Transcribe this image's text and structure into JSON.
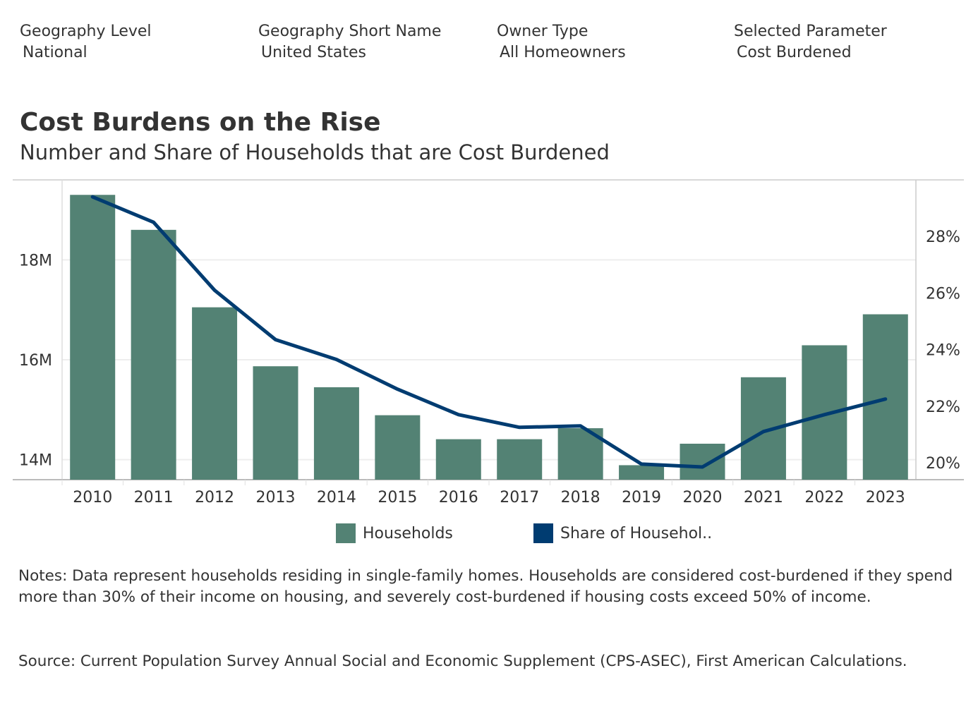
{
  "filters": [
    {
      "label": "Geography Level",
      "value": "National"
    },
    {
      "label": "Geography Short Name",
      "value": "United States"
    },
    {
      "label": "Owner Type",
      "value": "All Homeowners"
    },
    {
      "label": "Selected Parameter",
      "value": "Cost Burdened"
    }
  ],
  "title": "Cost Burdens on the Rise",
  "subtitle": "Number and Share of Households that are Cost Burdened",
  "legend": {
    "households": "Households",
    "share": "Share of Househol.."
  },
  "colors": {
    "bars": "#538274",
    "line": "#003c71",
    "grid": "#eeeeee",
    "axis": "#bbbbbb",
    "text": "#333333"
  },
  "notes": "Notes: Data represent households residing in single-family homes. Households are considered cost-burdened if they spend more than 30% of their income on housing, and severely cost-burdened if housing costs exceed 50% of income.",
  "source": "Source: Current Population Survey Annual Social and Economic Supplement (CPS-ASEC), First American Calculations.",
  "chart_data": {
    "type": "bar",
    "title": "Cost Burdens on the Rise",
    "subtitle": "Number and Share of Households that are Cost Burdened",
    "categories": [
      "2010",
      "2011",
      "2012",
      "2013",
      "2014",
      "2015",
      "2016",
      "2017",
      "2018",
      "2019",
      "2020",
      "2021",
      "2022",
      "2023"
    ],
    "series": [
      {
        "name": "Households",
        "type": "bar",
        "axis": "left",
        "values": [
          19.3,
          18.6,
          17.05,
          15.87,
          15.45,
          14.89,
          14.41,
          14.41,
          14.63,
          13.89,
          14.32,
          15.65,
          16.29,
          16.91
        ]
      },
      {
        "name": "Share of Househol..",
        "type": "line",
        "axis": "right",
        "values": [
          29.4,
          28.5,
          26.1,
          24.35,
          23.65,
          22.6,
          21.7,
          21.25,
          21.3,
          19.95,
          19.85,
          21.1,
          21.7,
          22.25
        ]
      }
    ],
    "y_left": {
      "ticks": [
        14,
        16,
        18
      ],
      "tick_labels": [
        "14M",
        "16M",
        "18M"
      ],
      "range": [
        13.6,
        19.6
      ]
    },
    "y_right": {
      "ticks": [
        20,
        22,
        24,
        26,
        28
      ],
      "tick_labels": [
        "20%",
        "22%",
        "24%",
        "26%",
        "28%"
      ],
      "range": [
        19.4,
        30.0
      ]
    },
    "grid": true,
    "legend_position": "bottom"
  }
}
